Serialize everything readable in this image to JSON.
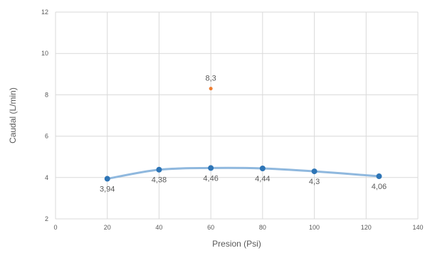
{
  "chart_data": {
    "type": "scatter",
    "title": "",
    "xlabel": "Presion (Psi)",
    "ylabel": "Caudal (L/min)",
    "xlim": [
      0,
      140
    ],
    "ylim": [
      2,
      12
    ],
    "x_ticks": [
      0,
      20,
      40,
      60,
      80,
      100,
      120,
      140
    ],
    "y_ticks": [
      2,
      4,
      6,
      8,
      10,
      12
    ],
    "grid": true,
    "legend": "none",
    "series": [
      {
        "style": "smooth-line-markers",
        "color": "#2e75b6",
        "line_color": "#8fb8de",
        "points": [
          {
            "x": 20,
            "y": 3.94,
            "label": "3,94"
          },
          {
            "x": 40,
            "y": 4.38,
            "label": "4,38"
          },
          {
            "x": 60,
            "y": 4.46,
            "label": "4,46"
          },
          {
            "x": 80,
            "y": 4.44,
            "label": "4,44"
          },
          {
            "x": 100,
            "y": 4.3,
            "label": "4,3"
          },
          {
            "x": 125,
            "y": 4.06,
            "label": "4,06"
          }
        ]
      },
      {
        "style": "markers",
        "color": "#ed7d31",
        "points": [
          {
            "x": 60,
            "y": 8.3,
            "label": "8,3"
          }
        ]
      }
    ]
  }
}
